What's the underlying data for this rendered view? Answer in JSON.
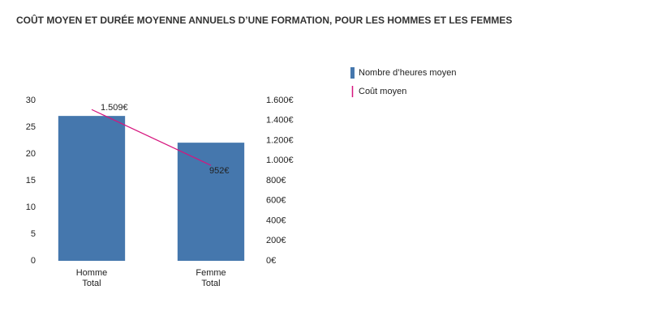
{
  "chart_data": {
    "type": "bar",
    "title": "COÛT MOYEN ET DURÉE MOYENNE ANNUELS D’UNE FORMATION, POUR LES HOMMES ET LES FEMMES",
    "categories": [
      "Homme\nTotal",
      "Femme\nTotal"
    ],
    "series": [
      {
        "name": "Nombre d’heures moyen",
        "type": "bar",
        "color": "#4577ad",
        "values": [
          27.1,
          22.1
        ]
      },
      {
        "name": "Coût moyen",
        "type": "line",
        "axis": "y2",
        "color": "#d6157e",
        "values": [
          1509,
          952
        ],
        "value_labels": [
          "1.509€",
          "952€"
        ]
      }
    ],
    "ylim": [
      0,
      30
    ],
    "yticks": [
      0,
      5,
      10,
      15,
      20,
      25,
      30
    ],
    "y2lim": [
      0,
      1600
    ],
    "y2ticks": [
      {
        "value": 0,
        "label": "0€"
      },
      {
        "value": 200,
        "label": "200€"
      },
      {
        "value": 400,
        "label": "400€"
      },
      {
        "value": 600,
        "label": "600€"
      },
      {
        "value": 800,
        "label": "800€"
      },
      {
        "value": 1000,
        "label": "1.000€"
      },
      {
        "value": 1200,
        "label": "1.200€"
      },
      {
        "value": 1400,
        "label": "1.400€"
      },
      {
        "value": 1600,
        "label": "1.600€"
      }
    ],
    "legend": "right"
  }
}
